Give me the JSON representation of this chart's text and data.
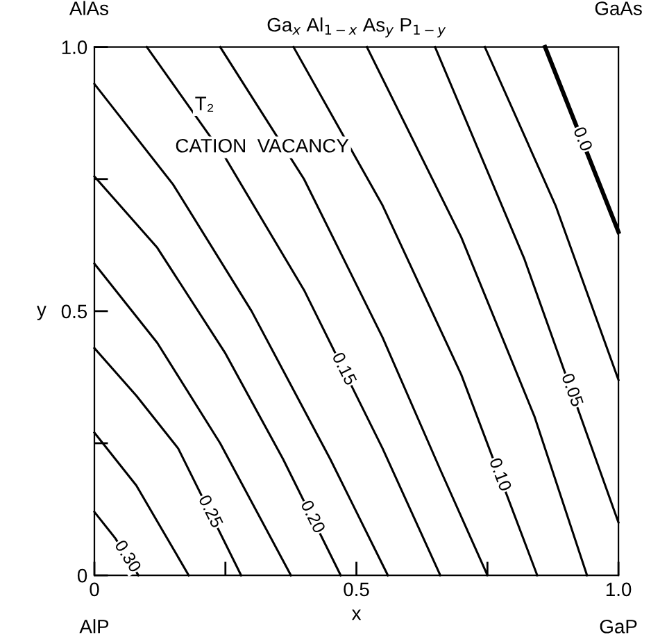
{
  "chart_data": {
    "type": "line",
    "title": "Ga$_{x}$ Al$_{1−x}$ As$_{y}$ P$_{1−y}$",
    "xlabel": "x",
    "ylabel": "y",
    "xlim": [
      0,
      1
    ],
    "ylim": [
      0,
      1
    ],
    "xticks": [
      0,
      {
        "value": 0.25,
        "label": null
      },
      0.5,
      {
        "value": 0.75,
        "label": null
      },
      {
        "value": 1,
        "label": "1.0"
      }
    ],
    "yticks": [
      0,
      {
        "value": 0.25,
        "label": null
      },
      0.5,
      {
        "value": 0.75,
        "label": null
      },
      {
        "value": 1,
        "label": "1.0"
      }
    ],
    "grid": false,
    "legend": false,
    "marker": "none",
    "line_style": "solid",
    "annotations": [
      "AlAs",
      "GaAs",
      "AlP",
      "GaP",
      "T₂",
      "CATION  VACANCY"
    ],
    "series": [
      {
        "name": "0.30",
        "color": "#000000",
        "x": [
          0,
          0.04,
          0.084
        ],
        "values": [
          0.12,
          0.07,
          0
        ]
      },
      {
        "color": "#000000",
        "x": [
          0,
          0.08,
          0.18
        ],
        "values": [
          0.27,
          0.17,
          0
        ]
      },
      {
        "name": "0.25",
        "color": "#000000",
        "x": [
          0,
          0.08,
          0.16,
          0.28
        ],
        "values": [
          0.43,
          0.34,
          0.24,
          0
        ]
      },
      {
        "color": "#000000",
        "x": [
          0,
          0.12,
          0.24,
          0.375
        ],
        "values": [
          0.59,
          0.44,
          0.25,
          0
        ]
      },
      {
        "name": "0.20",
        "color": "#000000",
        "x": [
          0,
          0.12,
          0.25,
          0.36,
          0.47
        ],
        "values": [
          0.755,
          0.62,
          0.42,
          0.22,
          0
        ]
      },
      {
        "color": "#000000",
        "x": [
          0,
          0.15,
          0.3,
          0.45,
          0.56
        ],
        "values": [
          0.93,
          0.74,
          0.5,
          0.22,
          0
        ]
      },
      {
        "name": "0.15",
        "color": "#000000",
        "x": [
          0.1,
          0.25,
          0.4,
          0.55,
          0.66
        ],
        "values": [
          1,
          0.79,
          0.54,
          0.24,
          0
        ]
      },
      {
        "color": "#000000",
        "x": [
          0.24,
          0.4,
          0.55,
          0.66,
          0.75
        ],
        "values": [
          1,
          0.75,
          0.45,
          0.2,
          0
        ]
      },
      {
        "name": "0.10",
        "color": "#000000",
        "x": [
          0.38,
          0.55,
          0.7,
          0.845
        ],
        "values": [
          1,
          0.7,
          0.38,
          0
        ]
      },
      {
        "color": "#000000",
        "x": [
          0.52,
          0.7,
          0.84,
          0.94
        ],
        "values": [
          1,
          0.64,
          0.3,
          0
        ]
      },
      {
        "name": "0.05",
        "color": "#000000",
        "x": [
          0.65,
          0.82,
          1
        ],
        "values": [
          1,
          0.6,
          0.1
        ]
      },
      {
        "color": "#000000",
        "x": [
          0.745,
          0.88,
          1
        ],
        "values": [
          1,
          0.7,
          0.37
        ]
      },
      {
        "name": "0.0",
        "color": "#000000",
        "x": [
          0.86,
          1
        ],
        "values": [
          1,
          0.65
        ]
      }
    ]
  }
}
